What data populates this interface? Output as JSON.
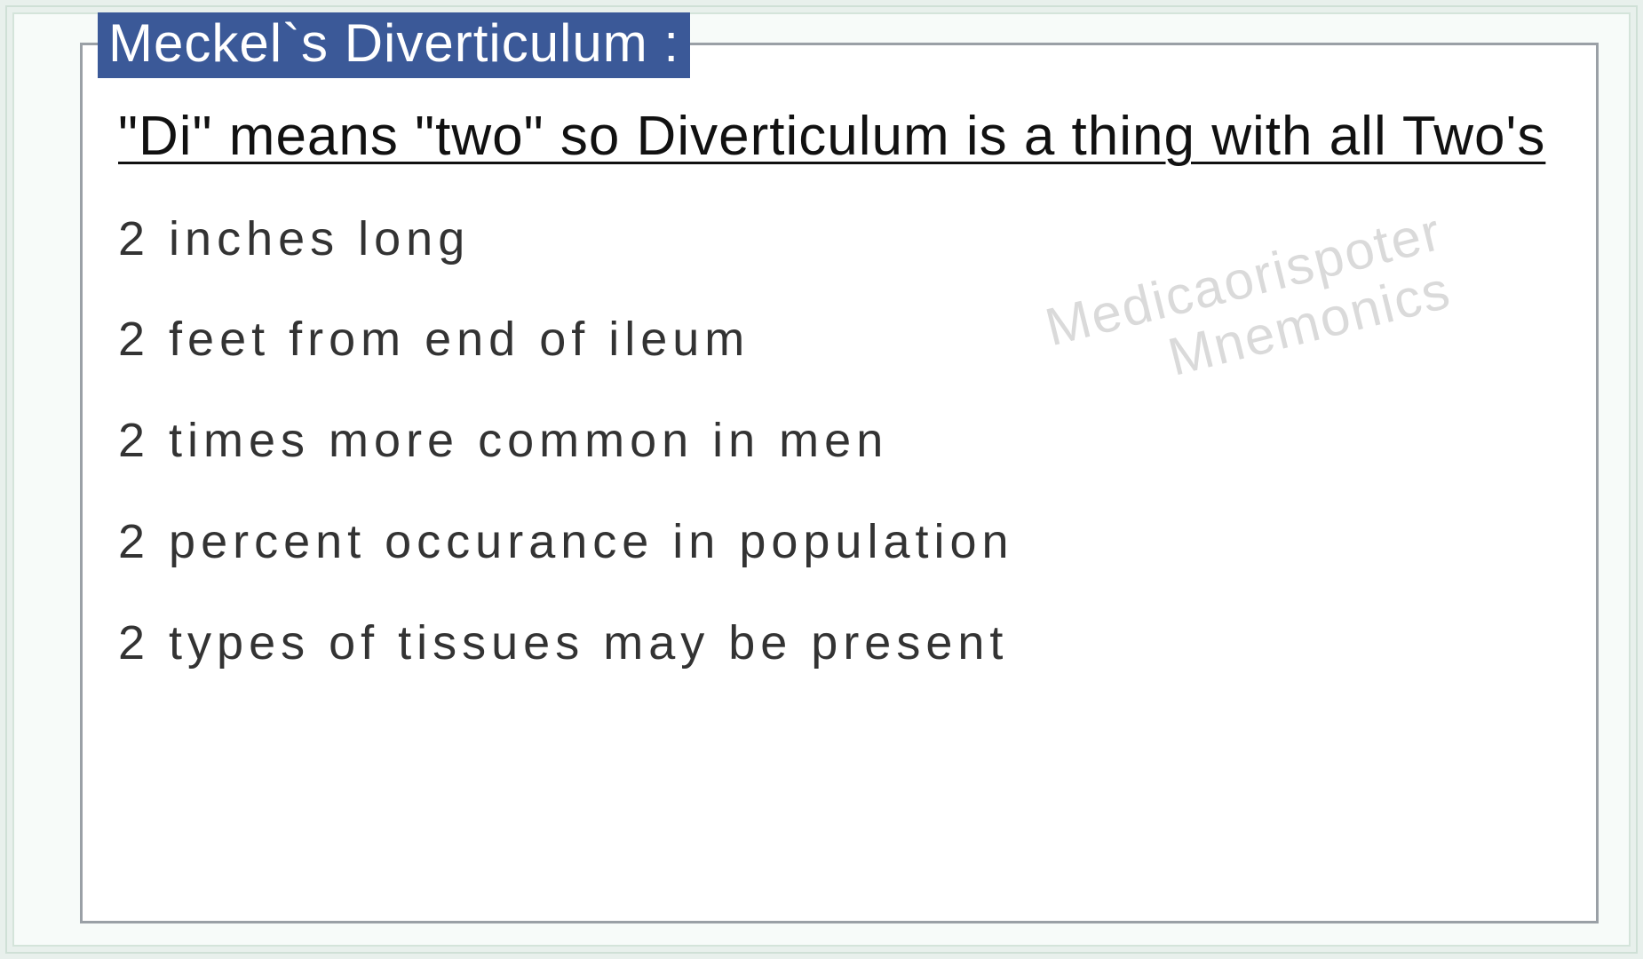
{
  "legend_title": "Meckel`s Diverticulum :",
  "subtitle": "\"Di\" means \"two\" so Diverticulum is a thing with all Two's ",
  "items": [
    "2 inches long",
    "2 feet from end of ileum",
    "2 times more common in men",
    "2 percent occurance in population",
    "2 types of tissues may be present"
  ],
  "watermark_line1": "Medicaorispoter",
  "watermark_line2": "Mnemonics",
  "colors": {
    "legend_bg": "#3b5998",
    "legend_text": "#ffffff",
    "card_border": "#9aa0a6",
    "page_bg": "#e8f0ec",
    "inner_bg": "#f7fbf9",
    "text": "#111111",
    "item_text": "#333333",
    "watermark": "#dadada"
  }
}
